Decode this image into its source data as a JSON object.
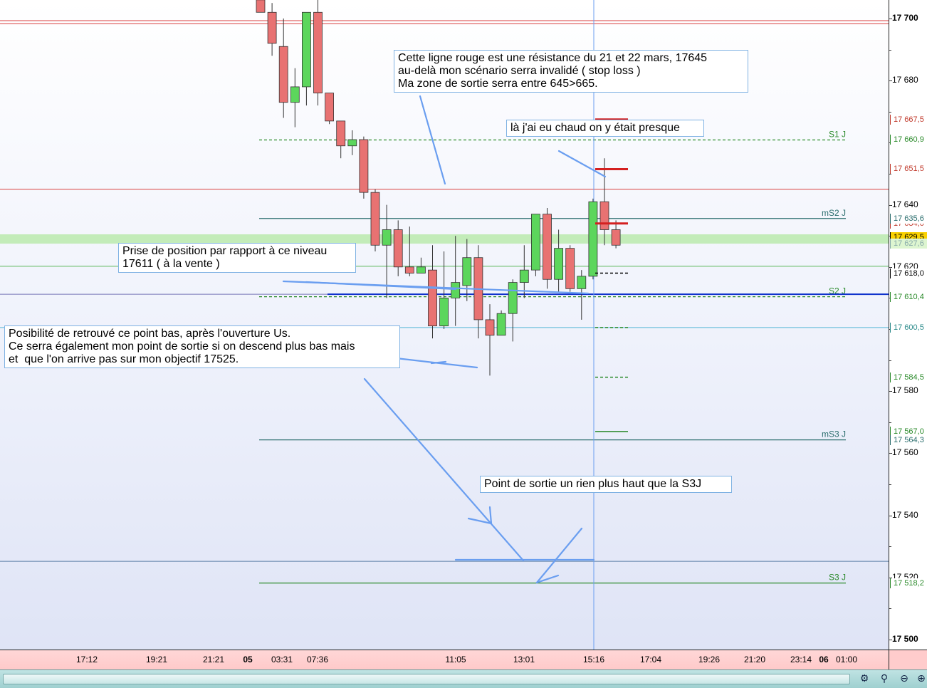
{
  "chart_data": {
    "type": "candlestick",
    "ylim": [
      17498,
      17706
    ],
    "y_ticks": [
      {
        "value": 17700,
        "label": "17 700",
        "bold": true
      },
      {
        "value": 17680,
        "label": "17 680",
        "bold": false
      },
      {
        "value": 17640,
        "label": "17 640",
        "bold": false
      },
      {
        "value": 17620,
        "label": "17 620",
        "bold": false
      },
      {
        "value": 17580,
        "label": "17 580",
        "bold": false
      },
      {
        "value": 17560,
        "label": "17 560",
        "bold": false
      },
      {
        "value": 17540,
        "label": "17 540",
        "bold": false
      },
      {
        "value": 17520,
        "label": "17 520",
        "bold": false
      },
      {
        "value": 17500,
        "label": "17 500",
        "bold": true
      }
    ],
    "x_ticks": [
      {
        "label": "17:12",
        "bold": false
      },
      {
        "label": "19:21",
        "bold": false
      },
      {
        "label": "21:21",
        "bold": false
      },
      {
        "label": "05",
        "bold": true
      },
      {
        "label": "03:31",
        "bold": false
      },
      {
        "label": "07:36",
        "bold": false
      },
      {
        "label": "11:05",
        "bold": false
      },
      {
        "label": "13:01",
        "bold": false
      },
      {
        "label": "15:16",
        "bold": false
      },
      {
        "label": "17:04",
        "bold": false
      },
      {
        "label": "19:26",
        "bold": false
      },
      {
        "label": "21:20",
        "bold": false
      },
      {
        "label": "23:14",
        "bold": false
      },
      {
        "label": "06",
        "bold": true
      },
      {
        "label": "01:00",
        "bold": false
      }
    ],
    "candles": [
      {
        "o": 17706,
        "h": 17706,
        "l": 17702,
        "c": 17702
      },
      {
        "o": 17702,
        "h": 17705,
        "l": 17688,
        "c": 17692
      },
      {
        "o": 17691,
        "h": 17700,
        "l": 17668,
        "c": 17673
      },
      {
        "o": 17673,
        "h": 17684,
        "l": 17665,
        "c": 17678
      },
      {
        "o": 17678,
        "h": 17702,
        "l": 17672,
        "c": 17702
      },
      {
        "o": 17702,
        "h": 17706,
        "l": 17672,
        "c": 17676
      },
      {
        "o": 17676,
        "h": 17676,
        "l": 17666,
        "c": 17667
      },
      {
        "o": 17667,
        "h": 17667,
        "l": 17655,
        "c": 17659
      },
      {
        "o": 17659,
        "h": 17664,
        "l": 17656,
        "c": 17661
      },
      {
        "o": 17661,
        "h": 17662,
        "l": 17642,
        "c": 17644
      },
      {
        "o": 17644,
        "h": 17645,
        "l": 17625,
        "c": 17627
      },
      {
        "o": 17627,
        "h": 17640,
        "l": 17610,
        "c": 17632
      },
      {
        "o": 17632,
        "h": 17635,
        "l": 17617,
        "c": 17620
      },
      {
        "o": 17620,
        "h": 17633,
        "l": 17617,
        "c": 17618
      },
      {
        "o": 17618,
        "h": 17623,
        "l": 17618,
        "c": 17620
      },
      {
        "o": 17619,
        "h": 17627,
        "l": 17597,
        "c": 17601
      },
      {
        "o": 17601,
        "h": 17625,
        "l": 17600,
        "c": 17610
      },
      {
        "o": 17610,
        "h": 17630,
        "l": 17601,
        "c": 17615
      },
      {
        "o": 17614,
        "h": 17629,
        "l": 17609,
        "c": 17623
      },
      {
        "o": 17623,
        "h": 17627,
        "l": 17597,
        "c": 17603
      },
      {
        "o": 17603,
        "h": 17608,
        "l": 17585,
        "c": 17598
      },
      {
        "o": 17598,
        "h": 17606,
        "l": 17598,
        "c": 17605
      },
      {
        "o": 17605,
        "h": 17616,
        "l": 17596,
        "c": 17615
      },
      {
        "o": 17615,
        "h": 17627,
        "l": 17610,
        "c": 17619
      },
      {
        "o": 17619,
        "h": 17637,
        "l": 17617,
        "c": 17637
      },
      {
        "o": 17637,
        "h": 17639,
        "l": 17613,
        "c": 17616
      },
      {
        "o": 17616,
        "h": 17632,
        "l": 17612,
        "c": 17626
      },
      {
        "o": 17626,
        "h": 17627,
        "l": 17612,
        "c": 17613
      },
      {
        "o": 17613,
        "h": 17619,
        "l": 17603,
        "c": 17617
      },
      {
        "o": 17617,
        "h": 17642,
        "l": 17616,
        "c": 17641
      },
      {
        "o": 17641,
        "h": 17655,
        "l": 17627,
        "c": 17632
      },
      {
        "o": 17632,
        "h": 17635,
        "l": 17626,
        "c": 17627
      }
    ],
    "levels": [
      {
        "name": "S1 J",
        "value": 17660.9,
        "tag": "17 660,9",
        "color": "#2a8a2a",
        "style": "dashed",
        "tag_bg": "#ffffff",
        "tag_color": "#2a8a2a"
      },
      {
        "name": "mS2 J",
        "value": 17635.6,
        "tag": "17 635,6",
        "color": "#2a6d6d",
        "style": "solid",
        "tag_bg": "#ffffff",
        "tag_color": "#2a6d6d"
      },
      {
        "name": "S2 J",
        "value": 17610.4,
        "tag": "17 610,4",
        "color": "#2a8a2a",
        "style": "dashed",
        "tag_bg": "#ffffff",
        "tag_color": "#2a8a2a"
      },
      {
        "name": "mS3 J",
        "value": 17564.3,
        "tag": "17 564,3",
        "color": "#2a6d6d",
        "style": "solid",
        "tag_bg": "#ffffff",
        "tag_color": "#2a6d6d"
      },
      {
        "name": "S3 J",
        "value": 17518.2,
        "tag": "17 518,2",
        "color": "#2a8a2a",
        "style": "solid",
        "tag_bg": "#ffffff",
        "tag_color": "#2a8a2a"
      }
    ],
    "price_tags": [
      {
        "value": 17667.5,
        "text": "17 667,5",
        "bg": "#ffffff",
        "color": "#c0392b"
      },
      {
        "value": 17651.5,
        "text": "17 651,5",
        "bg": "#ffffff",
        "color": "#c0392b"
      },
      {
        "value": 17634.0,
        "text": "17 634,0",
        "bg": "#ffffff",
        "color": "#c0392b"
      },
      {
        "value": 17629.5,
        "text": "17 629,5",
        "bg": "#f9d100",
        "color": "#000000"
      },
      {
        "value": 17627.6,
        "text": "17 627,6",
        "bg": "#ddf5d0",
        "color": "#8aa"
      },
      {
        "value": 17618.0,
        "text": "17 618,0",
        "bg": "#ffffff",
        "color": "#000000"
      },
      {
        "value": 17600.5,
        "text": "17 600,5",
        "bg": "#ffffff",
        "color": "#2a8a8a"
      },
      {
        "value": 17584.5,
        "text": "17 584,5",
        "bg": "#ffffff",
        "color": "#2a8a2a"
      },
      {
        "value": 17567.0,
        "text": "17 567,0",
        "bg": "#ffffff",
        "color": "#2a8a2a"
      }
    ],
    "colors": {
      "up": "#5cd65c",
      "down": "#e87272",
      "outline": "#333333",
      "resistance": "#d94040",
      "blue_line": "#1133cc",
      "annotation": "#6a9ef0"
    }
  },
  "notes": {
    "resistance": "Cette ligne rouge est une résistance du 21 et 22 mars, 17645\nau-delà mon scénario serra invalidé ( stop loss )\nMa zone de sortie serra entre 645>665.",
    "chaud": "là j'ai eu chaud on y était presque",
    "prise": "Prise de position par rapport à ce niveau\n17611 ( à la vente )",
    "posibilite": "Posibilité de retrouvé ce point bas, après l'ouverture Us.\nCe serra également mon point de sortie si on descend plus bas mais\net  que l'on arrive pas sur mon objectif 17525.",
    "sortie": "Point de sortie un rien plus haut que la S3J"
  },
  "toolbar": {
    "icons": [
      "chart-settings-icon",
      "magnifier-area-icon",
      "zoom-out-icon",
      "zoom-in-icon"
    ]
  }
}
